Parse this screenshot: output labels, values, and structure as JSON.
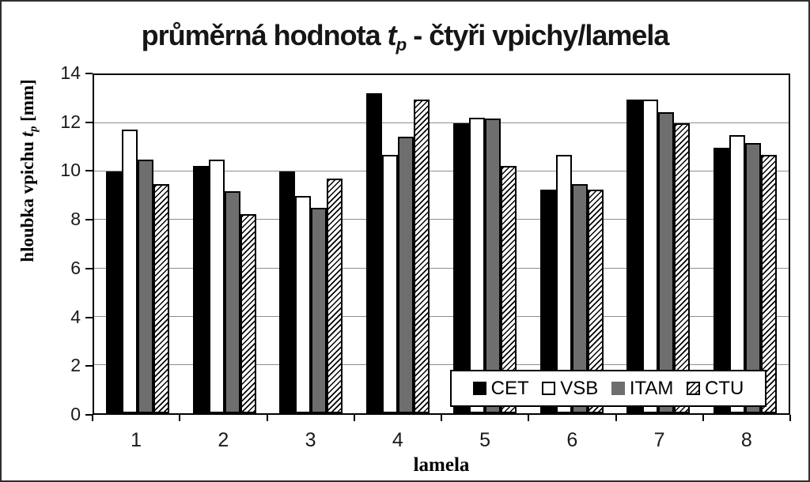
{
  "figure": {
    "title": {
      "prefix": "průměrná hodnota ",
      "variable": "t",
      "subscript": "p",
      "suffix": " - čtyři vpichy/lamela"
    },
    "y_axis_title": {
      "prefix": "hloubka vpichu ",
      "variable": "t",
      "subscript": "p",
      "suffix": " [mm]"
    },
    "x_axis_title": "lamela"
  },
  "chart_data": {
    "type": "bar",
    "title": "průměrná hodnota tp - čtyři vpichy/lamela",
    "xlabel": "lamela",
    "ylabel": "hloubka vpichu tp [mm]",
    "categories": [
      "1",
      "2",
      "3",
      "4",
      "5",
      "6",
      "7",
      "8"
    ],
    "series": [
      {
        "name": "CET",
        "fill": "#000000",
        "values": [
          10.0,
          10.25,
          10.0,
          13.25,
          12.0,
          9.25,
          13.0,
          11.0
        ]
      },
      {
        "name": "VSB",
        "fill": "#ffffff",
        "values": [
          11.75,
          10.5,
          9.0,
          10.7,
          12.25,
          10.7,
          13.0,
          11.5
        ]
      },
      {
        "name": "ITAM",
        "fill": "#6e6e6e",
        "values": [
          10.5,
          9.2,
          8.5,
          11.45,
          12.2,
          9.5,
          12.45,
          11.2
        ]
      },
      {
        "name": "CTU",
        "fill": "hatch",
        "values": [
          9.5,
          8.25,
          9.7,
          13.0,
          10.25,
          9.25,
          12.0,
          10.7
        ]
      }
    ],
    "ylim": [
      0,
      14
    ],
    "y_ticks": [
      0,
      2,
      4,
      6,
      8,
      10,
      12,
      14
    ],
    "grid": "horizontal",
    "legend_position": "inside-bottom-right",
    "colors": {
      "grid": "#8e8e8e",
      "axis": "#000000",
      "bar_outline": "#000000",
      "frame": "#2e2e2e",
      "background": "#ffffff"
    }
  }
}
